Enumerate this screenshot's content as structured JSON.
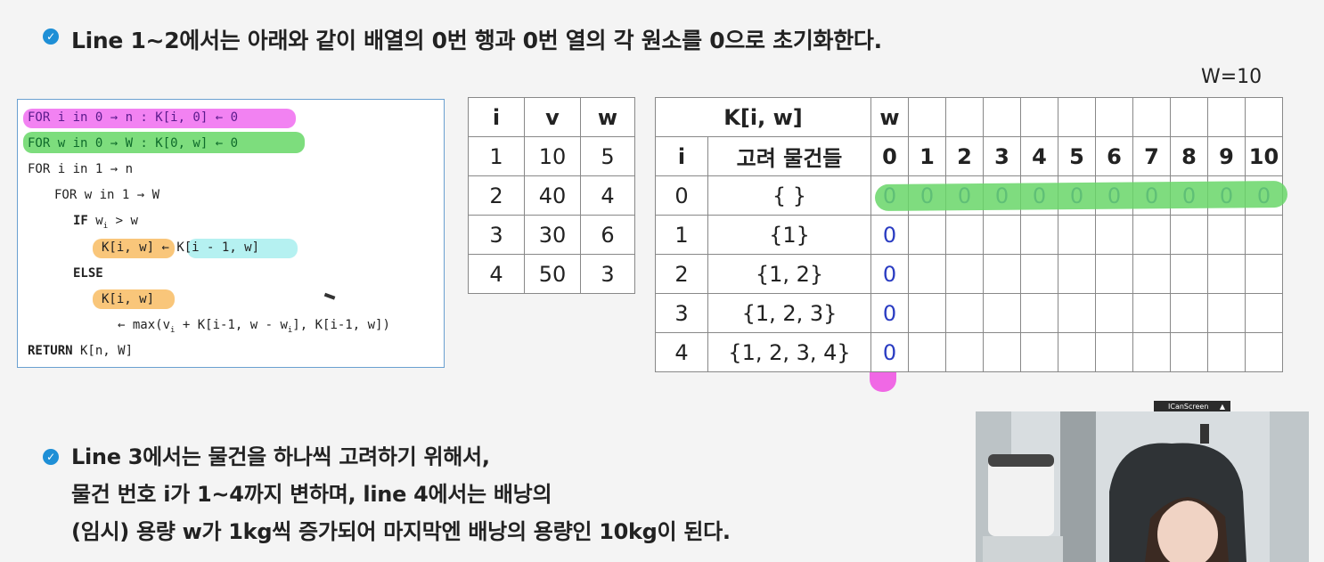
{
  "bullet1": {
    "text": "Line 1~2에서는 아래와 같이 배열의 0번 행과 0번 열의 각 원소를 0으로 초기화한다."
  },
  "w_label": "W=10",
  "code": {
    "l1": "FOR i in 0 → n : K[i, 0] ← 0",
    "l2": "FOR w in 0 → W : K[0, w] ← 0",
    "l3": "FOR i in 1 → n",
    "l4": "FOR w in 1 → W",
    "l5_kw": "IF",
    "l5": "w",
    "l5_sub": "i",
    "l5_rest": " > w",
    "l6a": "K[i, w]",
    "l6b": " ← ",
    "l6c": "K[i - 1, w]",
    "l7": "ELSE",
    "l8": "K[i, w]",
    "l9a": "← max(v",
    "l9b": "i",
    "l9c": " + K[i-1, w - w",
    "l9d": "i",
    "l9e": "], K[i-1, w])",
    "l10_kw": "RETURN",
    "l10": " K[n, W]"
  },
  "items_table": {
    "headers": [
      "i",
      "v",
      "w"
    ],
    "rows": [
      [
        "1",
        "10",
        "5"
      ],
      [
        "2",
        "40",
        "4"
      ],
      [
        "3",
        "30",
        "6"
      ],
      [
        "4",
        "50",
        "3"
      ]
    ]
  },
  "k_table": {
    "h1": "K[i, w]",
    "h_w": "w",
    "h_i": "i",
    "h_items": "고려 물건들",
    "w_cols": [
      "0",
      "1",
      "2",
      "3",
      "4",
      "5",
      "6",
      "7",
      "8",
      "9",
      "10"
    ],
    "rows": [
      {
        "i": "0",
        "items": "{ }",
        "vals": [
          "0",
          "0",
          "0",
          "0",
          "0",
          "0",
          "0",
          "0",
          "0",
          "0",
          "0"
        ]
      },
      {
        "i": "1",
        "items": "{1}",
        "vals": [
          "0",
          "",
          "",
          "",
          "",
          "",
          "",
          "",
          "",
          "",
          ""
        ]
      },
      {
        "i": "2",
        "items": "{1, 2}",
        "vals": [
          "0",
          "",
          "",
          "",
          "",
          "",
          "",
          "",
          "",
          "",
          ""
        ]
      },
      {
        "i": "3",
        "items": "{1, 2, 3}",
        "vals": [
          "0",
          "",
          "",
          "",
          "",
          "",
          "",
          "",
          "",
          "",
          ""
        ]
      },
      {
        "i": "4",
        "items": "{1, 2, 3, 4}",
        "vals": [
          "0",
          "",
          "",
          "",
          "",
          "",
          "",
          "",
          "",
          "",
          ""
        ]
      }
    ]
  },
  "bullet2": {
    "line1": "Line 3에서는 물건을 하나씩 고려하기 위해서,",
    "line2": "물건 번호 i가 1~4까지 변하며, line 4에서는 배낭의",
    "line3": "(임시) 용량 w가 1kg씩 증가되어 마지막엔 배낭의 용량인 10kg이 된다."
  },
  "webcam": {
    "title": "ICanScreen"
  },
  "colors": {
    "accent": "#1e8fd6",
    "highlight_pink": "#f06cf0",
    "highlight_green": "#5cd45c",
    "zero_blue": "#2a3cc2"
  }
}
